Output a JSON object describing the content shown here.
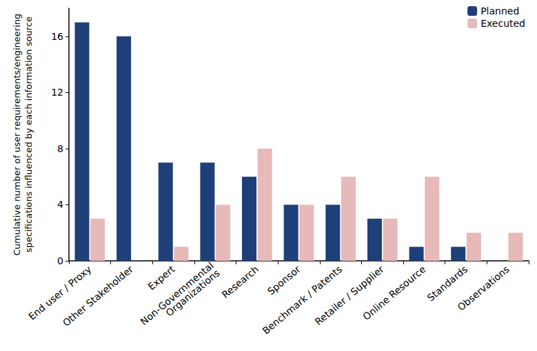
{
  "chart_data": {
    "type": "bar",
    "y_label": "Cumulative number of user requirements/engineering\nspecifications influenced by each information source",
    "categories": [
      "End user / Proxy",
      "Other Stakeholder",
      "Expert",
      "Non-Governmental\nOrganizations",
      "Research",
      "Sponsor",
      "Benchmark / Patents",
      "Retailer / Supplier",
      "Online Resource",
      "Standards",
      "Observations"
    ],
    "series": [
      {
        "name": "Planned",
        "color": "#1f3f78",
        "values": [
          17,
          16,
          7,
          7,
          6,
          4,
          4,
          3,
          1,
          1,
          0
        ]
      },
      {
        "name": "Executed",
        "color": "#e8b9b9",
        "values": [
          3,
          0,
          1,
          4,
          8,
          4,
          6,
          3,
          6,
          2,
          2
        ]
      }
    ],
    "ylim": [
      0,
      18
    ],
    "yticks": [
      0,
      4,
      8,
      12,
      16
    ],
    "grid": false,
    "legend": "top-right"
  }
}
